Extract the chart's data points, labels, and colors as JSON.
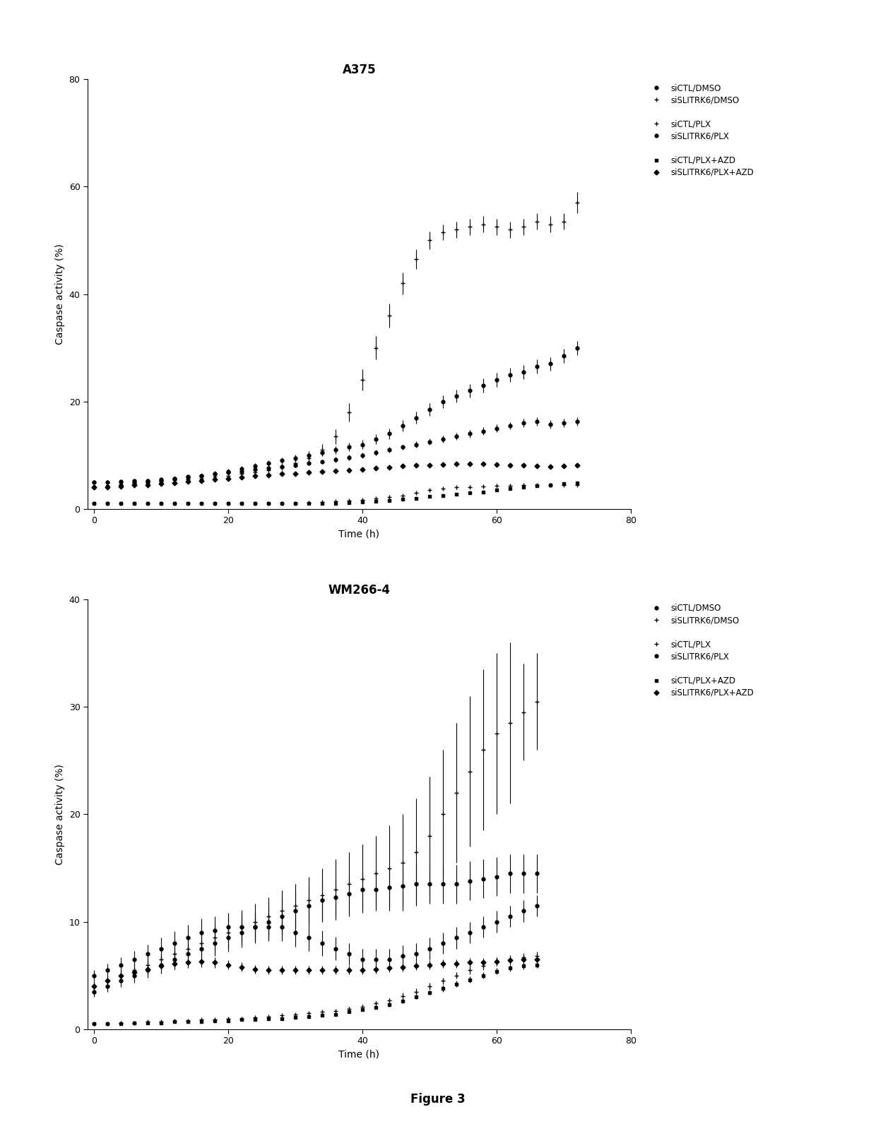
{
  "title1": "A375",
  "title2": "WM266-4",
  "figure_label": "Figure 3",
  "xlabel": "Time (h)",
  "ylabel": "Caspase activity (%)",
  "legend_labels": [
    "siCTL/DMSO",
    "siSLITRK6/DMSO",
    "siCTL/PLX",
    "siSLITRK6/PLX",
    "siCTL/PLX+AZD",
    "siSLITRK6/PLX+AZD"
  ],
  "A375": {
    "siCTL_DMSO": {
      "x": [
        0,
        2,
        4,
        6,
        8,
        10,
        12,
        14,
        16,
        18,
        20,
        22,
        24,
        26,
        28,
        30,
        32,
        34,
        36,
        38,
        40,
        42,
        44,
        46,
        48,
        50,
        52,
        54,
        56,
        58,
        60,
        62,
        64,
        66,
        68,
        70,
        72
      ],
      "y": [
        5.0,
        5.0,
        5.1,
        5.2,
        5.3,
        5.5,
        5.7,
        6.0,
        6.2,
        6.5,
        6.8,
        7.0,
        7.3,
        7.6,
        7.9,
        8.2,
        8.5,
        8.8,
        9.2,
        9.6,
        10.0,
        10.5,
        11.0,
        11.5,
        12.0,
        12.5,
        13.0,
        13.5,
        14.0,
        14.5,
        15.0,
        15.5,
        16.0,
        16.3,
        15.8,
        16.0,
        16.3
      ],
      "yerr": [
        0.3,
        0.3,
        0.3,
        0.3,
        0.3,
        0.3,
        0.3,
        0.3,
        0.3,
        0.3,
        0.3,
        0.3,
        0.4,
        0.4,
        0.4,
        0.4,
        0.4,
        0.4,
        0.5,
        0.5,
        0.5,
        0.5,
        0.5,
        0.5,
        0.6,
        0.6,
        0.6,
        0.7,
        0.7,
        0.7,
        0.7,
        0.7,
        0.8,
        0.8,
        0.8,
        0.8,
        0.8
      ]
    },
    "siSLITRK6_DMSO": {
      "x": [
        0,
        2,
        4,
        6,
        8,
        10,
        12,
        14,
        16,
        18,
        20,
        22,
        24,
        26,
        28,
        30,
        32,
        34,
        36,
        38,
        40,
        42,
        44,
        46,
        48,
        50,
        52,
        54,
        56,
        58,
        60,
        62,
        64,
        66,
        68,
        70,
        72
      ],
      "y": [
        5.0,
        5.0,
        5.0,
        5.1,
        5.2,
        5.3,
        5.4,
        5.5,
        5.7,
        6.0,
        6.2,
        6.5,
        6.8,
        7.2,
        7.8,
        8.5,
        9.5,
        11.0,
        13.5,
        18.0,
        24.0,
        30.0,
        36.0,
        42.0,
        46.5,
        50.0,
        51.5,
        52.0,
        52.5,
        53.0,
        52.5,
        52.0,
        52.5,
        53.5,
        53.0,
        53.5,
        57.0
      ],
      "yerr": [
        0.3,
        0.3,
        0.3,
        0.3,
        0.3,
        0.3,
        0.3,
        0.3,
        0.3,
        0.3,
        0.4,
        0.4,
        0.5,
        0.5,
        0.6,
        0.7,
        0.9,
        1.1,
        1.4,
        1.7,
        2.0,
        2.2,
        2.2,
        2.0,
        1.8,
        1.6,
        1.5,
        1.5,
        1.5,
        1.5,
        1.5,
        1.5,
        1.5,
        1.5,
        1.5,
        1.5,
        2.0
      ]
    },
    "siCTL_PLX": {
      "x": [
        0,
        2,
        4,
        6,
        8,
        10,
        12,
        14,
        16,
        18,
        20,
        22,
        24,
        26,
        28,
        30,
        32,
        34,
        36,
        38,
        40,
        42,
        44,
        46,
        48,
        50,
        52,
        54,
        56,
        58,
        60,
        62,
        64,
        66,
        68,
        70,
        72
      ],
      "y": [
        1.0,
        1.0,
        1.0,
        1.0,
        1.0,
        1.0,
        1.0,
        1.0,
        1.0,
        1.0,
        1.0,
        1.0,
        1.0,
        1.0,
        1.1,
        1.1,
        1.2,
        1.3,
        1.4,
        1.5,
        1.7,
        1.9,
        2.2,
        2.5,
        3.0,
        3.5,
        3.8,
        4.0,
        4.1,
        4.2,
        4.3,
        4.3,
        4.4,
        4.4,
        4.4,
        4.5,
        4.5
      ],
      "yerr": [
        0.1,
        0.1,
        0.1,
        0.1,
        0.1,
        0.1,
        0.1,
        0.1,
        0.1,
        0.1,
        0.1,
        0.1,
        0.1,
        0.1,
        0.1,
        0.1,
        0.1,
        0.1,
        0.1,
        0.1,
        0.1,
        0.2,
        0.2,
        0.2,
        0.2,
        0.3,
        0.3,
        0.3,
        0.3,
        0.3,
        0.3,
        0.3,
        0.3,
        0.3,
        0.3,
        0.3,
        0.3
      ]
    },
    "siSLITRK6_PLX": {
      "x": [
        0,
        2,
        4,
        6,
        8,
        10,
        12,
        14,
        16,
        18,
        20,
        22,
        24,
        26,
        28,
        30,
        32,
        34,
        36,
        38,
        40,
        42,
        44,
        46,
        48,
        50,
        52,
        54,
        56,
        58,
        60,
        62,
        64,
        66,
        68,
        70,
        72
      ],
      "y": [
        4.0,
        4.2,
        4.5,
        4.8,
        5.0,
        5.3,
        5.6,
        5.9,
        6.2,
        6.6,
        7.0,
        7.5,
        8.0,
        8.5,
        9.0,
        9.5,
        10.0,
        10.5,
        11.0,
        11.5,
        12.0,
        13.0,
        14.0,
        15.5,
        17.0,
        18.5,
        20.0,
        21.0,
        22.0,
        23.0,
        24.0,
        25.0,
        25.5,
        26.5,
        27.0,
        28.5,
        30.0
      ],
      "yerr": [
        0.3,
        0.3,
        0.3,
        0.3,
        0.3,
        0.4,
        0.4,
        0.4,
        0.4,
        0.5,
        0.5,
        0.5,
        0.5,
        0.6,
        0.6,
        0.6,
        0.7,
        0.7,
        0.7,
        0.8,
        0.8,
        0.9,
        1.0,
        1.0,
        1.1,
        1.2,
        1.2,
        1.2,
        1.2,
        1.3,
        1.3,
        1.3,
        1.3,
        1.3,
        1.3,
        1.3,
        1.3
      ]
    },
    "siCTL_PLX_AZD": {
      "x": [
        0,
        2,
        4,
        6,
        8,
        10,
        12,
        14,
        16,
        18,
        20,
        22,
        24,
        26,
        28,
        30,
        32,
        34,
        36,
        38,
        40,
        42,
        44,
        46,
        48,
        50,
        52,
        54,
        56,
        58,
        60,
        62,
        64,
        66,
        68,
        70,
        72
      ],
      "y": [
        1.0,
        1.0,
        1.0,
        1.0,
        1.0,
        1.0,
        1.0,
        1.0,
        1.0,
        1.0,
        1.0,
        1.0,
        1.0,
        1.0,
        1.0,
        1.0,
        1.0,
        1.0,
        1.1,
        1.2,
        1.3,
        1.4,
        1.6,
        1.8,
        2.0,
        2.3,
        2.5,
        2.8,
        3.0,
        3.2,
        3.5,
        3.8,
        4.0,
        4.3,
        4.5,
        4.7,
        4.8
      ],
      "yerr": [
        0.1,
        0.1,
        0.1,
        0.1,
        0.1,
        0.1,
        0.1,
        0.1,
        0.1,
        0.1,
        0.1,
        0.1,
        0.1,
        0.1,
        0.1,
        0.1,
        0.1,
        0.1,
        0.1,
        0.1,
        0.1,
        0.1,
        0.1,
        0.1,
        0.1,
        0.2,
        0.2,
        0.2,
        0.2,
        0.2,
        0.2,
        0.2,
        0.2,
        0.2,
        0.2,
        0.2,
        0.2
      ]
    },
    "siSLITRK6_PLX_AZD": {
      "x": [
        0,
        2,
        4,
        6,
        8,
        10,
        12,
        14,
        16,
        18,
        20,
        22,
        24,
        26,
        28,
        30,
        32,
        34,
        36,
        38,
        40,
        42,
        44,
        46,
        48,
        50,
        52,
        54,
        56,
        58,
        60,
        62,
        64,
        66,
        68,
        70,
        72
      ],
      "y": [
        4.0,
        4.1,
        4.2,
        4.4,
        4.5,
        4.7,
        4.9,
        5.1,
        5.3,
        5.5,
        5.7,
        5.9,
        6.1,
        6.3,
        6.5,
        6.6,
        6.8,
        7.0,
        7.1,
        7.2,
        7.4,
        7.6,
        7.8,
        8.0,
        8.1,
        8.2,
        8.3,
        8.4,
        8.4,
        8.4,
        8.3,
        8.2,
        8.1,
        8.0,
        7.9,
        8.0,
        8.2
      ],
      "yerr": [
        0.2,
        0.2,
        0.2,
        0.2,
        0.2,
        0.2,
        0.2,
        0.2,
        0.2,
        0.2,
        0.2,
        0.2,
        0.3,
        0.3,
        0.3,
        0.3,
        0.3,
        0.3,
        0.3,
        0.3,
        0.3,
        0.3,
        0.3,
        0.3,
        0.3,
        0.3,
        0.3,
        0.3,
        0.3,
        0.3,
        0.3,
        0.3,
        0.3,
        0.3,
        0.3,
        0.3,
        0.3
      ]
    }
  },
  "WM266": {
    "siCTL_DMSO": {
      "x": [
        0,
        2,
        4,
        6,
        8,
        10,
        12,
        14,
        16,
        18,
        20,
        22,
        24,
        26,
        28,
        30,
        32,
        34,
        36,
        38,
        40,
        42,
        44,
        46,
        48,
        50,
        52,
        54,
        56,
        58,
        60,
        62,
        64,
        66
      ],
      "y": [
        3.5,
        4.0,
        4.5,
        5.0,
        5.5,
        6.0,
        6.5,
        7.0,
        7.5,
        8.0,
        8.5,
        9.0,
        9.5,
        10.0,
        10.5,
        11.0,
        11.5,
        12.0,
        12.3,
        12.6,
        13.0,
        13.0,
        13.2,
        13.3,
        13.5,
        13.5,
        13.5,
        13.5,
        13.8,
        14.0,
        14.2,
        14.5,
        14.5,
        14.5
      ],
      "yerr": [
        0.5,
        0.5,
        0.6,
        0.7,
        0.7,
        0.8,
        0.9,
        1.0,
        1.1,
        1.2,
        1.3,
        1.4,
        1.5,
        1.6,
        1.7,
        1.7,
        1.8,
        1.8,
        1.8,
        1.8,
        1.8,
        1.8,
        1.8,
        1.8,
        1.8,
        1.8,
        1.8,
        1.8,
        1.8,
        1.8,
        1.8,
        1.8,
        1.8,
        1.8
      ]
    },
    "siSLITRK6_DMSO": {
      "x": [
        0,
        2,
        4,
        6,
        8,
        10,
        12,
        14,
        16,
        18,
        20,
        22,
        24,
        26,
        28,
        30,
        32,
        34,
        36,
        38,
        40,
        42,
        44,
        46,
        48,
        50,
        52,
        54,
        56,
        58,
        60,
        62,
        64,
        66
      ],
      "y": [
        4.0,
        4.5,
        5.0,
        5.5,
        6.0,
        6.5,
        7.0,
        7.5,
        8.0,
        8.5,
        9.0,
        9.5,
        10.0,
        10.5,
        11.0,
        11.5,
        12.0,
        12.5,
        13.0,
        13.5,
        14.0,
        14.5,
        15.0,
        15.5,
        16.5,
        18.0,
        20.0,
        22.0,
        24.0,
        26.0,
        27.5,
        28.5,
        29.5,
        30.5
      ],
      "yerr": [
        0.5,
        0.5,
        0.6,
        0.7,
        0.8,
        0.9,
        1.0,
        1.1,
        1.2,
        1.3,
        1.5,
        1.6,
        1.7,
        1.8,
        1.9,
        2.0,
        2.2,
        2.5,
        2.8,
        3.0,
        3.2,
        3.5,
        4.0,
        4.5,
        5.0,
        5.5,
        6.0,
        6.5,
        7.0,
        7.5,
        7.5,
        7.5,
        4.5,
        4.5
      ]
    },
    "siCTL_PLX": {
      "x": [
        0,
        2,
        4,
        6,
        8,
        10,
        12,
        14,
        16,
        18,
        20,
        22,
        24,
        26,
        28,
        30,
        32,
        34,
        36,
        38,
        40,
        42,
        44,
        46,
        48,
        50,
        52,
        54,
        56,
        58,
        60,
        62,
        64,
        66
      ],
      "y": [
        0.5,
        0.5,
        0.6,
        0.6,
        0.7,
        0.7,
        0.8,
        0.8,
        0.9,
        0.9,
        1.0,
        1.0,
        1.1,
        1.2,
        1.3,
        1.4,
        1.5,
        1.6,
        1.7,
        1.9,
        2.1,
        2.4,
        2.7,
        3.1,
        3.5,
        4.0,
        4.5,
        5.0,
        5.5,
        5.9,
        6.3,
        6.5,
        6.7,
        6.8
      ],
      "yerr": [
        0.1,
        0.1,
        0.1,
        0.1,
        0.1,
        0.1,
        0.1,
        0.1,
        0.1,
        0.1,
        0.1,
        0.1,
        0.1,
        0.1,
        0.1,
        0.1,
        0.1,
        0.1,
        0.1,
        0.2,
        0.2,
        0.2,
        0.2,
        0.3,
        0.3,
        0.3,
        0.3,
        0.3,
        0.4,
        0.4,
        0.4,
        0.4,
        0.4,
        0.4
      ]
    },
    "siSLITRK6_PLX": {
      "x": [
        0,
        2,
        4,
        6,
        8,
        10,
        12,
        14,
        16,
        18,
        20,
        22,
        24,
        26,
        28,
        30,
        32,
        34,
        36,
        38,
        40,
        42,
        44,
        46,
        48,
        50,
        52,
        54,
        56,
        58,
        60,
        62,
        64,
        66
      ],
      "y": [
        5.0,
        5.5,
        6.0,
        6.5,
        7.0,
        7.5,
        8.0,
        8.5,
        9.0,
        9.2,
        9.5,
        9.5,
        9.5,
        9.5,
        9.5,
        9.0,
        8.5,
        8.0,
        7.5,
        7.0,
        6.5,
        6.5,
        6.5,
        6.8,
        7.0,
        7.5,
        8.0,
        8.5,
        9.0,
        9.5,
        10.0,
        10.5,
        11.0,
        11.5
      ],
      "yerr": [
        0.5,
        0.6,
        0.7,
        0.8,
        0.9,
        1.0,
        1.1,
        1.2,
        1.3,
        1.3,
        1.3,
        1.3,
        1.3,
        1.3,
        1.3,
        1.3,
        1.2,
        1.2,
        1.1,
        1.0,
        1.0,
        1.0,
        1.0,
        1.0,
        1.0,
        1.0,
        1.0,
        1.0,
        1.0,
        1.0,
        1.0,
        1.0,
        1.0,
        1.0
      ]
    },
    "siCTL_PLX_AZD": {
      "x": [
        0,
        2,
        4,
        6,
        8,
        10,
        12,
        14,
        16,
        18,
        20,
        22,
        24,
        26,
        28,
        30,
        32,
        34,
        36,
        38,
        40,
        42,
        44,
        46,
        48,
        50,
        52,
        54,
        56,
        58,
        60,
        62,
        64,
        66
      ],
      "y": [
        0.5,
        0.5,
        0.5,
        0.6,
        0.6,
        0.6,
        0.7,
        0.7,
        0.7,
        0.8,
        0.8,
        0.9,
        0.9,
        1.0,
        1.0,
        1.1,
        1.2,
        1.3,
        1.4,
        1.6,
        1.8,
        2.0,
        2.3,
        2.6,
        3.0,
        3.4,
        3.8,
        4.2,
        4.6,
        5.0,
        5.4,
        5.7,
        5.9,
        6.0
      ],
      "yerr": [
        0.1,
        0.1,
        0.1,
        0.1,
        0.1,
        0.1,
        0.1,
        0.1,
        0.1,
        0.1,
        0.1,
        0.1,
        0.1,
        0.1,
        0.1,
        0.1,
        0.1,
        0.1,
        0.1,
        0.1,
        0.1,
        0.1,
        0.2,
        0.2,
        0.2,
        0.2,
        0.3,
        0.3,
        0.3,
        0.3,
        0.3,
        0.3,
        0.3,
        0.3
      ]
    },
    "siSLITRK6_PLX_AZD": {
      "x": [
        0,
        2,
        4,
        6,
        8,
        10,
        12,
        14,
        16,
        18,
        20,
        22,
        24,
        26,
        28,
        30,
        32,
        34,
        36,
        38,
        40,
        42,
        44,
        46,
        48,
        50,
        52,
        54,
        56,
        58,
        60,
        62,
        64,
        66
      ],
      "y": [
        4.0,
        4.5,
        5.0,
        5.3,
        5.6,
        5.9,
        6.1,
        6.2,
        6.3,
        6.2,
        6.0,
        5.8,
        5.6,
        5.5,
        5.5,
        5.5,
        5.5,
        5.5,
        5.5,
        5.5,
        5.5,
        5.6,
        5.7,
        5.8,
        5.9,
        6.0,
        6.1,
        6.1,
        6.2,
        6.2,
        6.3,
        6.4,
        6.5,
        6.5
      ],
      "yerr": [
        0.4,
        0.4,
        0.5,
        0.5,
        0.5,
        0.5,
        0.5,
        0.5,
        0.5,
        0.5,
        0.4,
        0.4,
        0.4,
        0.4,
        0.4,
        0.4,
        0.4,
        0.4,
        0.4,
        0.4,
        0.4,
        0.4,
        0.4,
        0.4,
        0.4,
        0.4,
        0.4,
        0.4,
        0.4,
        0.4,
        0.4,
        0.4,
        0.4,
        0.4
      ]
    }
  }
}
